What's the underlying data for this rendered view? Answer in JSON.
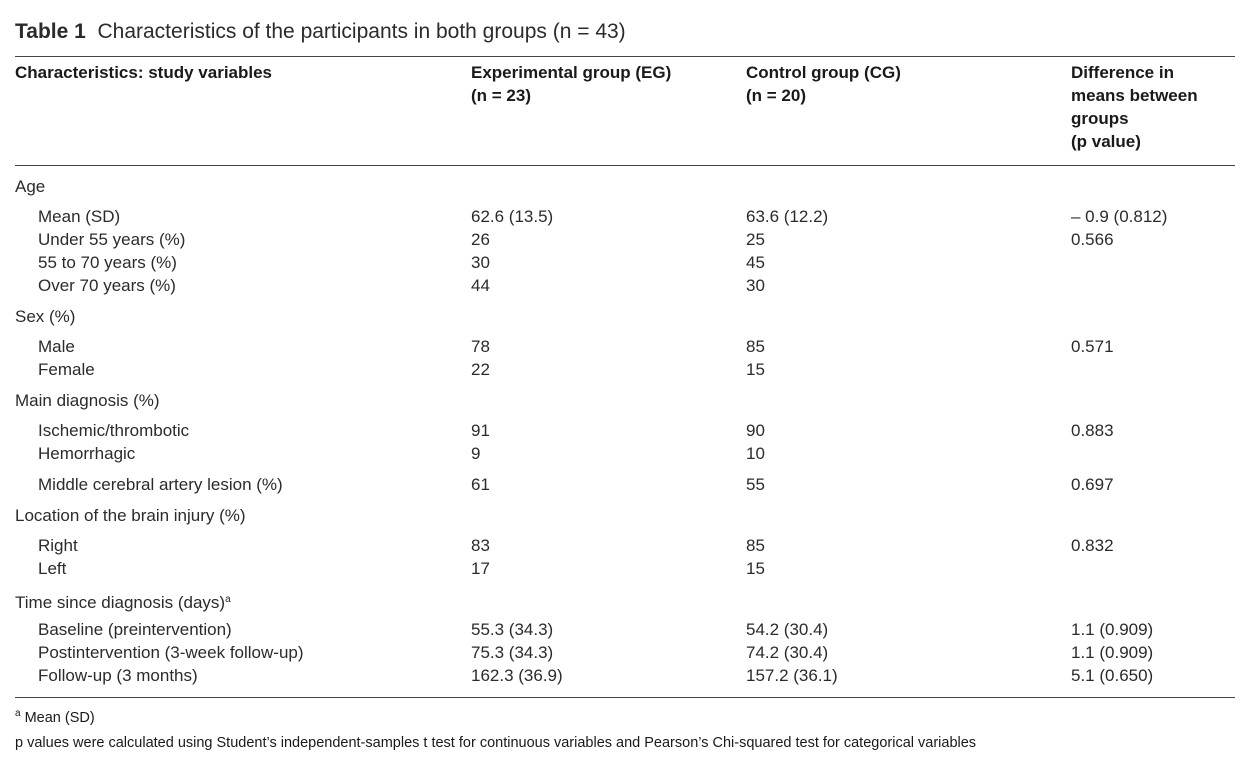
{
  "title": {
    "label": "Table 1",
    "text": "Characteristics of the participants in both groups (n = 43)"
  },
  "table": {
    "header": [
      [
        "Characteristics: study variables"
      ],
      [
        "Experimental group (EG)",
        "(n = 23)"
      ],
      [
        "Control group (CG)",
        "(n = 20)"
      ],
      [
        "Difference in",
        "means between",
        "groups",
        "(p value)"
      ]
    ],
    "sections": [
      {
        "label": "Age",
        "row_groups": [
          [
            [
              "Mean (SD)",
              "62.6 (13.5)",
              "63.6 (12.2)",
              "– 0.9 (0.812)"
            ],
            [
              "Under 55 years (%)",
              "26",
              "25",
              "0.566"
            ],
            [
              "55 to 70 years (%)",
              "30",
              "45"
            ],
            [
              "Over 70 years (%)",
              "44",
              "30"
            ]
          ]
        ]
      },
      {
        "label": "Sex (%)",
        "row_groups": [
          [
            [
              "Male",
              "78",
              "85",
              "0.571"
            ],
            [
              "Female",
              "22",
              "15"
            ]
          ]
        ]
      },
      {
        "label": "Main diagnosis (%)",
        "row_groups": [
          [
            [
              "Ischemic/thrombotic",
              "91",
              "90",
              "0.883"
            ],
            [
              "Hemorrhagic",
              "9",
              "10"
            ]
          ],
          [
            [
              "Middle cerebral artery lesion (%)",
              "61",
              "55",
              "0.697"
            ]
          ]
        ]
      },
      {
        "label": "Location of the brain injury (%)",
        "row_groups": [
          [
            [
              "Right",
              "83",
              "85",
              "0.832"
            ],
            [
              "Left",
              "17",
              "15"
            ]
          ]
        ]
      },
      {
        "label": "Time since diagnosis (days)",
        "note": "a",
        "row_groups": [
          [
            [
              "Baseline (preintervention)",
              "55.3 (34.3)",
              "54.2 (30.4)",
              "1.1 (0.909)"
            ],
            [
              "Postintervention (3-week follow-up)",
              "75.3 (34.3)",
              "74.2 (30.4)",
              "1.1 (0.909)"
            ],
            [
              "Follow-up (3 months)",
              "162.3 (36.9)",
              "157.2 (36.1)",
              "5.1 (0.650)"
            ]
          ]
        ]
      }
    ]
  },
  "footnotes": [
    {
      "mark": "a",
      "text": "Mean (SD)"
    },
    {
      "text": "p values were calculated using Student’s independent-samples t test for continuous variables and Pearson’s Chi-squared test for categorical variables"
    }
  ]
}
